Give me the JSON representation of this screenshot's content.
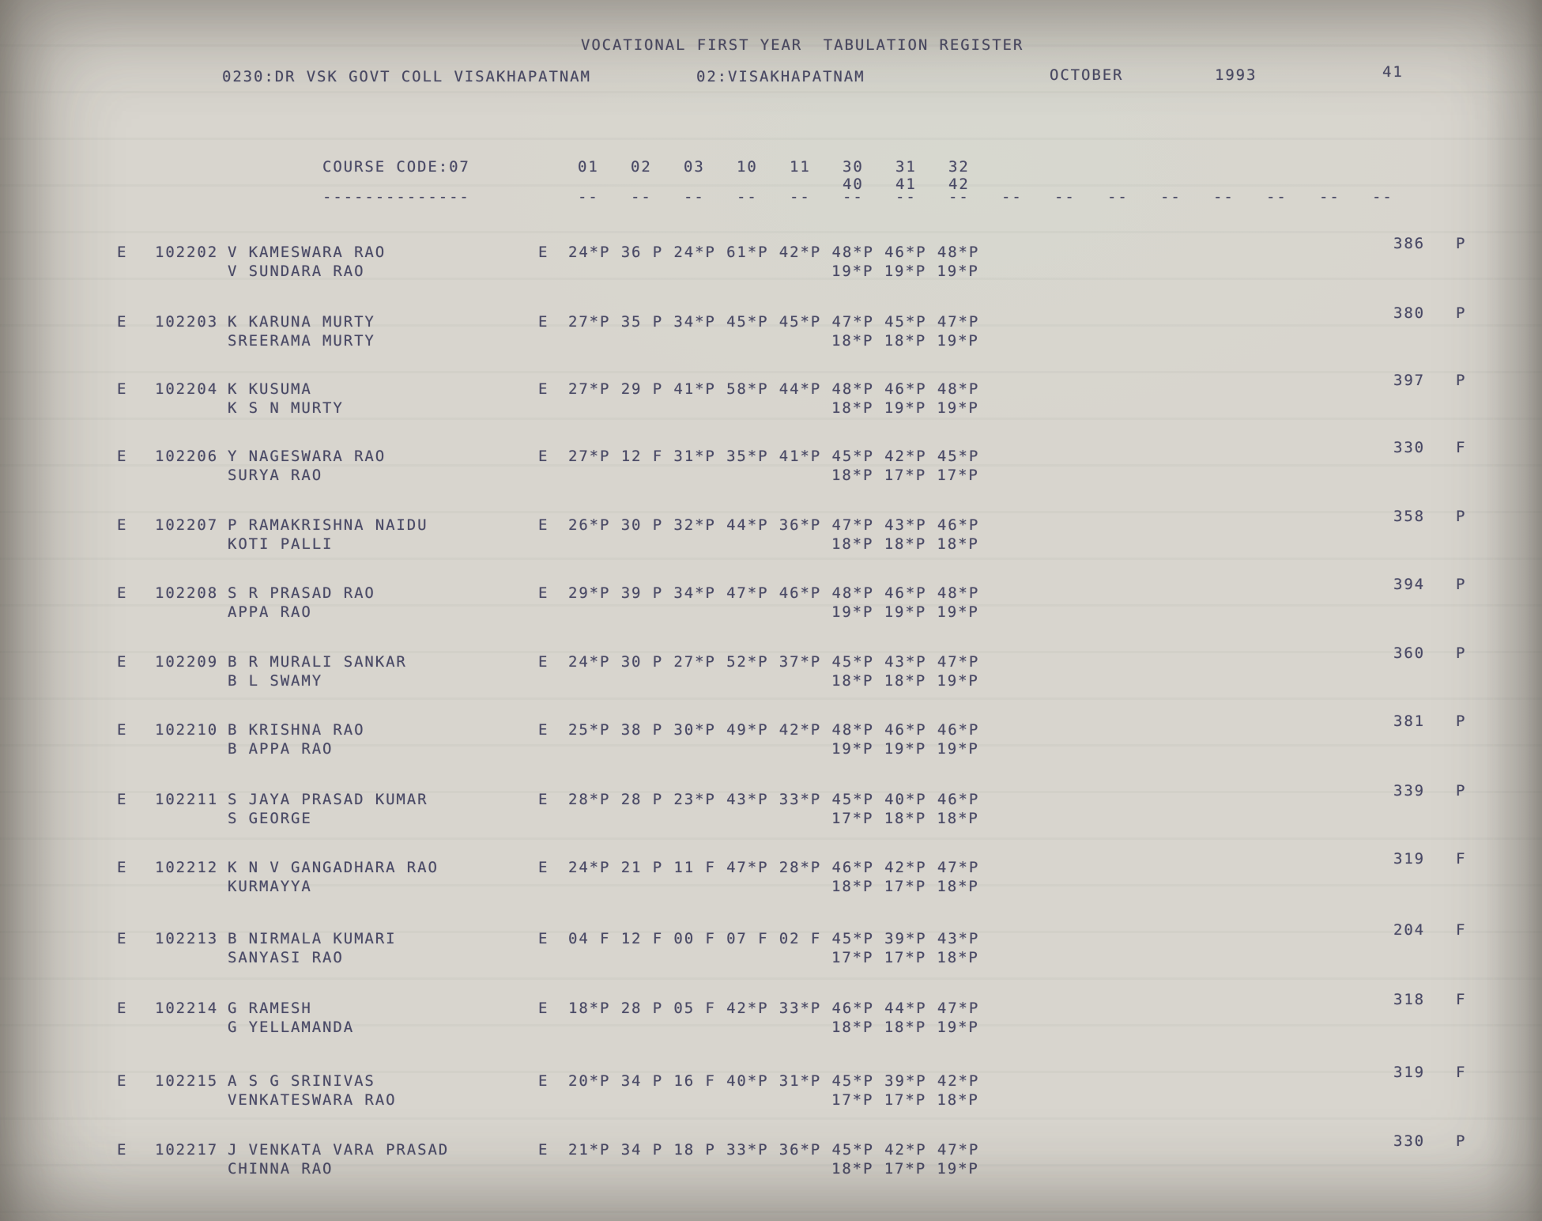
{
  "document": {
    "title": "VOCATIONAL FIRST YEAR  TABULATION REGISTER",
    "college": "0230:DR VSK GOVT COLL VISAKHAPATNAM",
    "district": "02:VISAKHAPATNAM",
    "month": "OCTOBER",
    "year": "1993",
    "page_number": "41"
  },
  "table": {
    "course_code_label": "COURSE CODE:07",
    "course_code_underline": "--------------",
    "subject_codes_row1": [
      "01",
      "02",
      "03",
      "10",
      "11",
      "30",
      "31",
      "32"
    ],
    "subject_codes_row2": [
      "40",
      "41",
      "42"
    ],
    "column_dash": "--",
    "dash_column_count": 16,
    "rows": [
      {
        "medium": "E",
        "roll_no": "102202",
        "name": "V KAMESWARA RAO",
        "father_name": "V SUNDARA RAO",
        "marks_medium": "E",
        "marks_line1": "24*P 36 P 24*P 61*P 42*P 48*P 46*P 48*P",
        "marks_line2": "19*P 19*P 19*P",
        "total": "386",
        "result": "P"
      },
      {
        "medium": "E",
        "roll_no": "102203",
        "name": "K KARUNA MURTY",
        "father_name": "SREERAMA MURTY",
        "marks_medium": "E",
        "marks_line1": "27*P 35 P 34*P 45*P 45*P 47*P 45*P 47*P",
        "marks_line2": "18*P 18*P 19*P",
        "total": "380",
        "result": "P"
      },
      {
        "medium": "E",
        "roll_no": "102204",
        "name": "K KUSUMA",
        "father_name": "K S N MURTY",
        "marks_medium": "E",
        "marks_line1": "27*P 29 P 41*P 58*P 44*P 48*P 46*P 48*P",
        "marks_line2": "18*P 19*P 19*P",
        "total": "397",
        "result": "P"
      },
      {
        "medium": "E",
        "roll_no": "102206",
        "name": "Y NAGESWARA RAO",
        "father_name": "SURYA RAO",
        "marks_medium": "E",
        "marks_line1": "27*P 12 F 31*P 35*P 41*P 45*P 42*P 45*P",
        "marks_line2": "18*P 17*P 17*P",
        "total": "330",
        "result": "F"
      },
      {
        "medium": "E",
        "roll_no": "102207",
        "name": "P RAMAKRISHNA NAIDU",
        "father_name": "KOTI PALLI",
        "marks_medium": "E",
        "marks_line1": "26*P 30 P 32*P 44*P 36*P 47*P 43*P 46*P",
        "marks_line2": "18*P 18*P 18*P",
        "total": "358",
        "result": "P"
      },
      {
        "medium": "E",
        "roll_no": "102208",
        "name": "S R PRASAD RAO",
        "father_name": "APPA RAO",
        "marks_medium": "E",
        "marks_line1": "29*P 39 P 34*P 47*P 46*P 48*P 46*P 48*P",
        "marks_line2": "19*P 19*P 19*P",
        "total": "394",
        "result": "P"
      },
      {
        "medium": "E",
        "roll_no": "102209",
        "name": "B R MURALI SANKAR",
        "father_name": "B L SWAMY",
        "marks_medium": "E",
        "marks_line1": "24*P 30 P 27*P 52*P 37*P 45*P 43*P 47*P",
        "marks_line2": "18*P 18*P 19*P",
        "total": "360",
        "result": "P"
      },
      {
        "medium": "E",
        "roll_no": "102210",
        "name": "B KRISHNA RAO",
        "father_name": "B APPA RAO",
        "marks_medium": "E",
        "marks_line1": "25*P 38 P 30*P 49*P 42*P 48*P 46*P 46*P",
        "marks_line2": "19*P 19*P 19*P",
        "total": "381",
        "result": "P"
      },
      {
        "medium": "E",
        "roll_no": "102211",
        "name": "S JAYA PRASAD KUMAR",
        "father_name": "S GEORGE",
        "marks_medium": "E",
        "marks_line1": "28*P 28 P 23*P 43*P 33*P 45*P 40*P 46*P",
        "marks_line2": "17*P 18*P 18*P",
        "total": "339",
        "result": "P"
      },
      {
        "medium": "E",
        "roll_no": "102212",
        "name": "K N V GANGADHARA RAO",
        "father_name": "KURMAYYA",
        "marks_medium": "E",
        "marks_line1": "24*P 21 P 11 F 47*P 28*P 46*P 42*P 47*P",
        "marks_line2": "18*P 17*P 18*P",
        "total": "319",
        "result": "F"
      },
      {
        "medium": "E",
        "roll_no": "102213",
        "name": "B NIRMALA KUMARI",
        "father_name": "SANYASI RAO",
        "marks_medium": "E",
        "marks_line1": "04 F 12 F 00 F 07 F 02 F 45*P 39*P 43*P",
        "marks_line2": "17*P 17*P 18*P",
        "total": "204",
        "result": "F"
      },
      {
        "medium": "E",
        "roll_no": "102214",
        "name": "G RAMESH",
        "father_name": "G YELLAMANDA",
        "marks_medium": "E",
        "marks_line1": "18*P 28 P 05 F 42*P 33*P 46*P 44*P 47*P",
        "marks_line2": "18*P 18*P 19*P",
        "total": "318",
        "result": "F"
      },
      {
        "medium": "E",
        "roll_no": "102215",
        "name": "A S G SRINIVAS",
        "father_name": "VENKATESWARA RAO",
        "marks_medium": "E",
        "marks_line1": "20*P 34 P 16 F 40*P 31*P 45*P 39*P 42*P",
        "marks_line2": "17*P 17*P 18*P",
        "total": "319",
        "result": "F"
      },
      {
        "medium": "E",
        "roll_no": "102217",
        "name": "J VENKATA VARA PRASAD",
        "father_name": "CHINNA RAO",
        "marks_medium": "E",
        "marks_line1": "21*P 34 P 18 P 33*P 36*P 45*P 42*P 47*P",
        "marks_line2": "18*P 17*P 19*P",
        "total": "330",
        "result": "P"
      }
    ]
  },
  "colors": {
    "ink": "#3f3f5e",
    "paper": "#d8d5ce"
  }
}
